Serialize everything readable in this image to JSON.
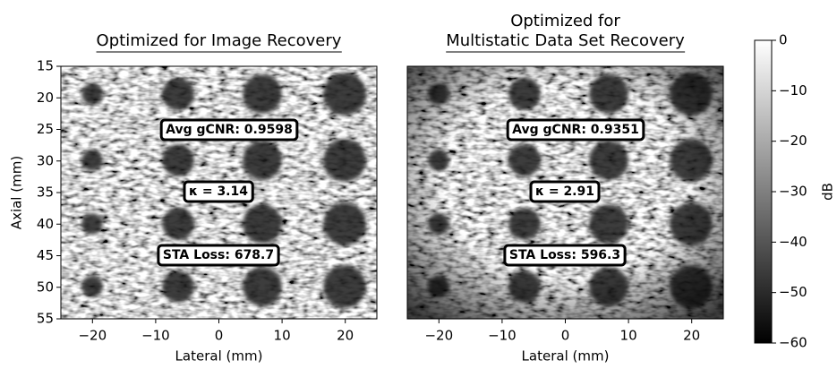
{
  "chart_data": [
    {
      "type": "image",
      "title_lines": [
        "Optimized for Image Recovery"
      ],
      "x_label": "Lateral (mm)",
      "y_label": "Axial (mm)",
      "xlim": [
        -25,
        25
      ],
      "ylim": [
        15,
        55
      ],
      "y_inverted": true,
      "xticks": [
        {
          "value": -20,
          "label": "−20"
        },
        {
          "value": -10,
          "label": "−10"
        },
        0,
        10,
        20
      ],
      "yticks": [
        15,
        20,
        25,
        30,
        35,
        40,
        45,
        50,
        55
      ],
      "annotations": [
        {
          "text": "Avg gCNR: 0.9598",
          "color": "#ff0000"
        },
        {
          "text": "κ = 3.14",
          "color": "#008000"
        },
        {
          "text": "STA Loss: 678.7",
          "color": "#0000ff"
        }
      ]
    },
    {
      "type": "image",
      "title_lines": [
        "Optimized for",
        "Multistatic Data Set Recovery"
      ],
      "x_label": "Lateral (mm)",
      "xlim": [
        -25,
        25
      ],
      "ylim": [
        15,
        55
      ],
      "y_inverted": true,
      "xticks": [
        {
          "value": -20,
          "label": "−20"
        },
        {
          "value": -10,
          "label": "−10"
        },
        0,
        10,
        20
      ],
      "annotations": [
        {
          "text": "Avg gCNR: 0.9351",
          "color": "#ff0000"
        },
        {
          "text": "κ = 2.91",
          "color": "#008000"
        },
        {
          "text": "STA Loss: 596.3",
          "color": "#0000ff"
        }
      ]
    },
    {
      "type": "colorbar",
      "label": "dB",
      "ylim": [
        -60,
        0
      ],
      "yticks": [
        {
          "value": -60,
          "label": "−60"
        },
        {
          "value": -50,
          "label": "−50"
        },
        {
          "value": -40,
          "label": "−40"
        },
        {
          "value": -30,
          "label": "−30"
        },
        {
          "value": -20,
          "label": "−20"
        },
        {
          "value": -10,
          "label": "−10"
        },
        0
      ]
    }
  ]
}
